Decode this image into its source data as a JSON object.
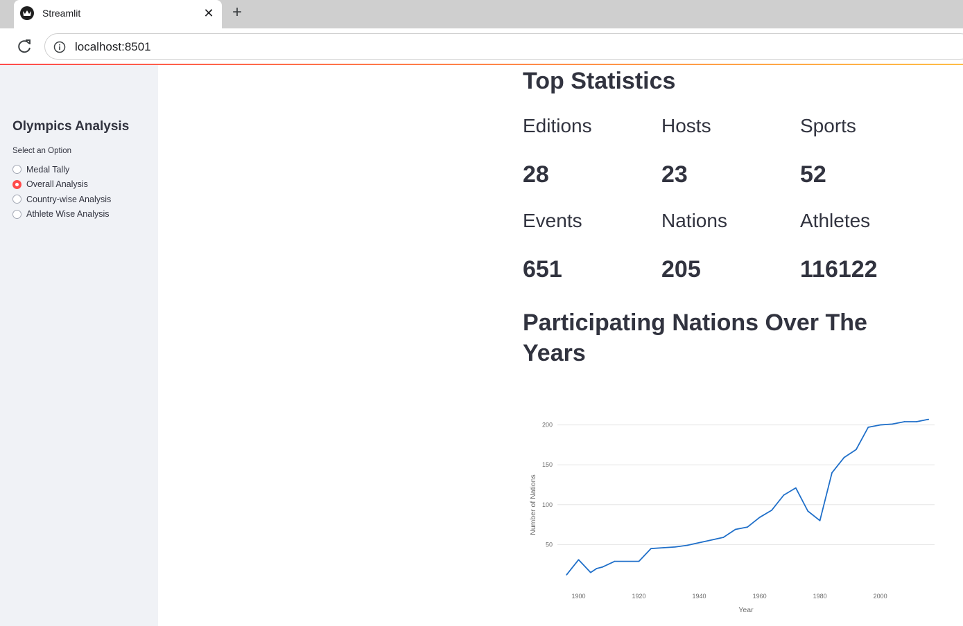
{
  "browser": {
    "tab_title": "Streamlit",
    "tab_close": "✕",
    "new_tab": "+",
    "url": "localhost:8501"
  },
  "sidebar": {
    "title": "Olympics Analysis",
    "radio_label": "Select an Option",
    "options": [
      {
        "label": "Medal Tally",
        "selected": false
      },
      {
        "label": "Overall Analysis",
        "selected": true
      },
      {
        "label": "Country-wise Analysis",
        "selected": false
      },
      {
        "label": "Athlete Wise Analysis",
        "selected": false
      }
    ],
    "accent_color": "#ff4b4b"
  },
  "main": {
    "heading": "Top Statistics",
    "stats": [
      {
        "label": "Editions",
        "value": "28"
      },
      {
        "label": "Hosts",
        "value": "23"
      },
      {
        "label": "Sports",
        "value": "52"
      },
      {
        "label": "Events",
        "value": "651"
      },
      {
        "label": "Nations",
        "value": "205"
      },
      {
        "label": "Athletes",
        "value": "116122"
      }
    ],
    "chart_heading": "Participating Nations Over The Years"
  },
  "chart_data": {
    "type": "line",
    "title": "",
    "xlabel": "Year",
    "ylabel": "Number of Nations",
    "xlim": [
      1893,
      2018
    ],
    "ylim": [
      0,
      217
    ],
    "x_ticks": [
      1900,
      1920,
      1940,
      1960,
      1980,
      2000
    ],
    "y_ticks": [
      50,
      100,
      150,
      200
    ],
    "grid": true,
    "line_color": "#1f6fc9",
    "series": [
      {
        "x": [
          1896,
          1900,
          1904,
          1906,
          1908,
          1912,
          1920,
          1924,
          1928,
          1932,
          1936,
          1948,
          1952,
          1956,
          1960,
          1964,
          1968,
          1972,
          1976,
          1980,
          1984,
          1988,
          1992,
          1996,
          2000,
          2004,
          2008,
          2012,
          2016
        ],
        "y": [
          12,
          31,
          15,
          20,
          22,
          29,
          29,
          45,
          46,
          47,
          49,
          59,
          69,
          72,
          84,
          93,
          112,
          121,
          92,
          80,
          140,
          159,
          169,
          197,
          200,
          201,
          204,
          204,
          207
        ]
      }
    ]
  }
}
